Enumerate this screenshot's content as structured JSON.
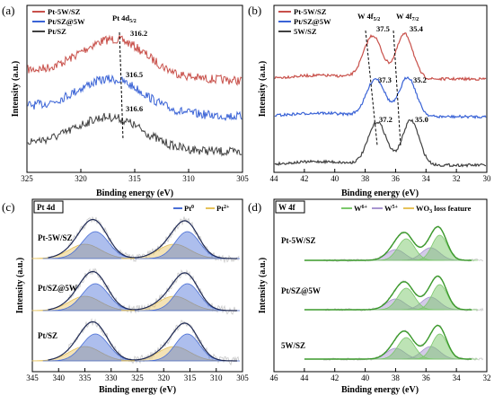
{
  "panels": [
    {
      "id": "a",
      "label": "(a)",
      "xlabel": "Binding energy (eV)",
      "ylabel": "Intensity (a.u.)",
      "peak_label": "Pt 4d",
      "peak_label_sub": "5/2",
      "legend": [
        "Pt-5W/SZ",
        "Pt/SZ@5W",
        "Pt/SZ"
      ]
    },
    {
      "id": "b",
      "label": "(b)",
      "xlabel": "Binding energy (eV)",
      "ylabel": "Intensity (a.u.)",
      "peak_label_1": "W 4f",
      "peak_label_1_sub": "5/2",
      "peak_label_2": "W 4f",
      "peak_label_2_sub": "7/2",
      "legend": [
        "Pt-5W/SZ",
        "Pt/SZ@5W",
        "5W/SZ"
      ]
    },
    {
      "id": "c",
      "label": "(c)",
      "xlabel": "Binding energy (eV)",
      "ylabel": "Intensity (a.u.)",
      "box_label": "Pt 4d",
      "legend_1": "Pt",
      "legend_1_sup": "0",
      "legend_2": "Pt",
      "legend_2_sup": "2+",
      "sample_labels": [
        "Pt-5W/SZ",
        "Pt/SZ@5W",
        "Pt/SZ"
      ]
    },
    {
      "id": "d",
      "label": "(d)",
      "xlabel": "Binding energy (eV)",
      "ylabel": "Intensity (a.u.)",
      "box_label": "W 4f",
      "legend_1": "W",
      "legend_1_sup": "6+",
      "legend_2": "W",
      "legend_2_sup": "5+",
      "legend_3": "WO",
      "legend_3_sub": "3",
      "legend_3_tail": " loss feature",
      "sample_labels": [
        "Pt-5W/SZ",
        "Pt/SZ@5W",
        "5W/SZ"
      ]
    }
  ],
  "chart_data": [
    {
      "type": "line",
      "panel": "a",
      "x_range": [
        325,
        305
      ],
      "xticks": [
        325,
        320,
        315,
        310,
        305
      ],
      "y_ticks_shown": false,
      "series": [
        {
          "name": "Pt-5W/SZ",
          "color": "#c8504a",
          "peak_x": 316.2,
          "peak_label": "316.2"
        },
        {
          "name": "Pt/SZ@5W",
          "color": "#3a63d6",
          "peak_x": 316.5,
          "peak_label": "316.5"
        },
        {
          "name": "Pt/SZ",
          "color": "#404040",
          "peak_x": 316.6,
          "peak_label": "316.6"
        }
      ]
    },
    {
      "type": "line",
      "panel": "b",
      "x_range": [
        44,
        30
      ],
      "xticks": [
        44,
        42,
        40,
        38,
        36,
        34,
        32,
        30
      ],
      "y_ticks_shown": false,
      "series": [
        {
          "name": "Pt-5W/SZ",
          "color": "#c8504a",
          "peaks_x": [
            37.5,
            35.4
          ],
          "peak_labels": [
            "37.5",
            "35.4"
          ]
        },
        {
          "name": "Pt/SZ@5W",
          "color": "#3a63d6",
          "peaks_x": [
            37.3,
            35.2
          ],
          "peak_labels": [
            "37.3",
            "35.2"
          ]
        },
        {
          "name": "5W/SZ",
          "color": "#404040",
          "peaks_x": [
            37.2,
            35.0
          ],
          "peak_labels": [
            "37.2",
            "35.0"
          ]
        }
      ]
    },
    {
      "type": "area",
      "panel": "c",
      "x_range": [
        345,
        305
      ],
      "xticks": [
        345,
        340,
        335,
        330,
        325,
        320,
        315,
        310,
        305
      ],
      "y_ticks_shown": false,
      "components": [
        {
          "name": "Pt0",
          "color": "#4a6fd6"
        },
        {
          "name": "Pt2+",
          "color": "#e6c25a"
        }
      ]
    },
    {
      "type": "area",
      "panel": "d",
      "x_range": [
        46,
        32
      ],
      "xticks": [
        46,
        44,
        42,
        40,
        38,
        36,
        34,
        32
      ],
      "y_ticks_shown": false,
      "components": [
        {
          "name": "W6+",
          "color": "#7bc86b"
        },
        {
          "name": "W5+",
          "color": "#a895d0"
        },
        {
          "name": "WO3 loss feature",
          "color": "#e6c25a"
        }
      ]
    }
  ]
}
